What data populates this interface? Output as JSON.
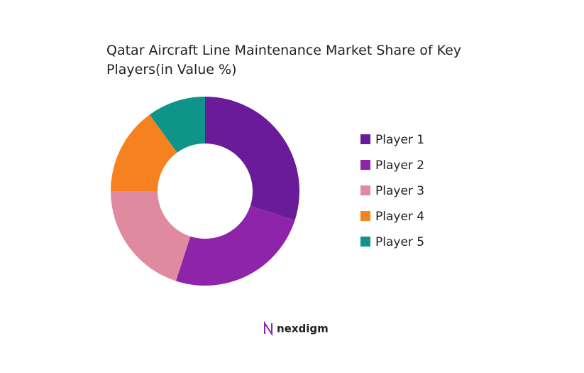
{
  "chart_data": {
    "type": "donut",
    "title": "Qatar Aircraft Line Maintenance Market Share of Key Players(in Value %)",
    "categories": [
      "Player 1",
      "Player 2",
      "Player 3",
      "Player 4",
      "Player 5"
    ],
    "values": [
      30,
      25,
      20,
      15,
      10
    ],
    "colors": [
      "#6a1b9a",
      "#8e24aa",
      "#e08aa0",
      "#f5821f",
      "#0e9488"
    ],
    "legend": "right"
  },
  "brand": "nexdigm"
}
